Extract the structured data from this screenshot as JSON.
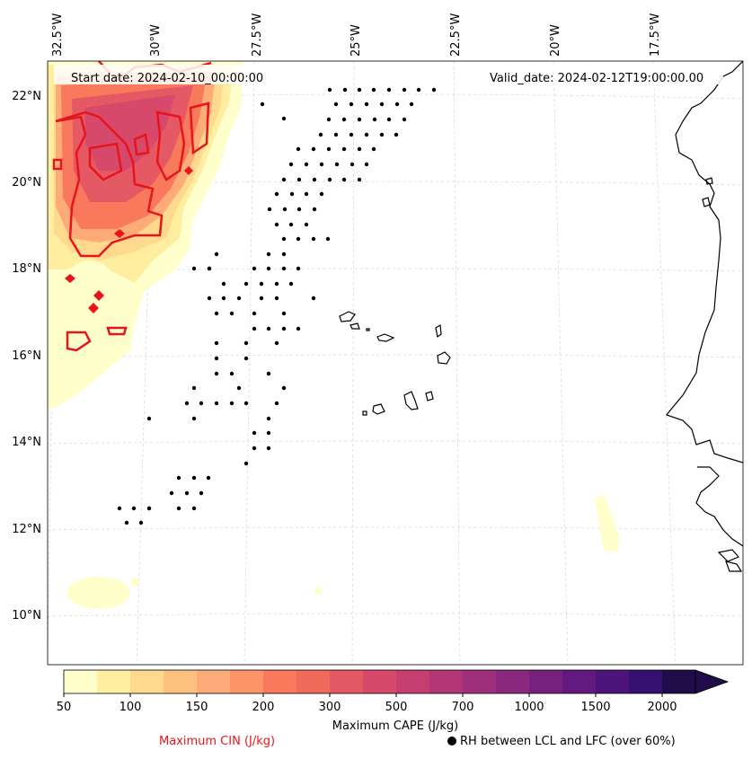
{
  "map": {
    "start_date": "Start date: 2024-02-10_00:00:00",
    "valid_date": "Valid_date: 2024-02-12T19:00:00.00",
    "lon_ticks": [
      "32.5°W",
      "30°W",
      "27.5°W",
      "25°W",
      "22.5°W",
      "20°W",
      "17.5°W"
    ],
    "lat_ticks": [
      "22°N",
      "20°N",
      "18°N",
      "16°N",
      "14°N",
      "12°N",
      "10°N"
    ]
  },
  "colorbar": {
    "title": "Maximum CAPE (J/kg)",
    "levels": [
      "50",
      "100",
      "150",
      "200",
      "300",
      "500",
      "700",
      "1000",
      "1500",
      "2000"
    ],
    "colors": [
      "#ffffcc",
      "#ffeda0",
      "#fed98e",
      "#fec280",
      "#fdab78",
      "#fc9468",
      "#f9795d",
      "#f06a5c",
      "#e55964",
      "#d6496a",
      "#c53e70",
      "#b23676",
      "#9e2f7b",
      "#8a287d",
      "#77217f",
      "#621a80",
      "#4d147b",
      "#361070",
      "#1f0c48"
    ]
  },
  "legend": {
    "cin_label": "Maximum CIN (J/kg)",
    "rh_label": "RH between LCL and LFC (over 60%)",
    "cin_color": "#e8141c"
  }
}
